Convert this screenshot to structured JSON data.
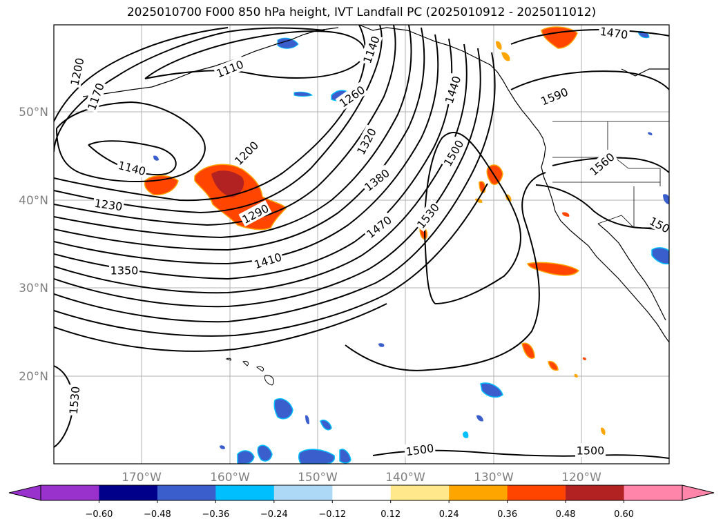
{
  "title": "2025010700 F000 850 hPa height, IVT Landfall PC (2025010912 - 2025011012)",
  "map": {
    "lat_labels": [
      "50°N",
      "40°N",
      "30°N",
      "20°N"
    ],
    "lon_labels": [
      "170°W",
      "160°W",
      "150°W",
      "140°W",
      "130°W",
      "120°W"
    ],
    "contour_labels": [
      "1200",
      "1170",
      "1110",
      "1140",
      "1440",
      "1470",
      "1590",
      "1260",
      "1320",
      "1200",
      "1140",
      "1380",
      "1500",
      "1560",
      "1230",
      "1290",
      "1530",
      "1470",
      "1350",
      "1410",
      "1530",
      "1500",
      "1500",
      "150"
    ]
  },
  "colorbar": {
    "ticks": [
      "−0.60",
      "−0.48",
      "−0.36",
      "−0.24",
      "−0.12",
      "0.12",
      "0.24",
      "0.36",
      "0.48",
      "0.60"
    ],
    "colors": [
      "#9932cc",
      "#00008b",
      "#3a5fcd",
      "#00bfff",
      "#add8f6",
      "#ffffff",
      "#ffe78c",
      "#ffa500",
      "#ff4500",
      "#b22222",
      "#ff85aa"
    ]
  }
}
